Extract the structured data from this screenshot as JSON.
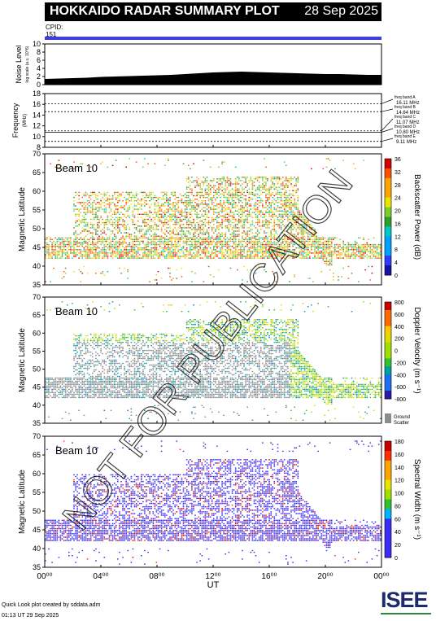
{
  "header": {
    "title": "HOKKAIDO RADAR SUMMARY PLOT",
    "date": "28 Sep 2025"
  },
  "cpid": {
    "label": "CPID:",
    "value": "151"
  },
  "noise_panel": {
    "ylabel": "Noise Level",
    "ylabel_sub": "log scale (a.u. 10^6)",
    "ticks": [
      "0",
      "2",
      "4",
      "6",
      "8",
      "10"
    ]
  },
  "freq_panel": {
    "ylabel": "Frequency",
    "unit": "(MHz)",
    "ticks": [
      "8",
      "10",
      "12",
      "14",
      "16",
      "18"
    ],
    "bands": [
      {
        "name": "freq band A",
        "value": "16.11 MHz"
      },
      {
        "name": "freq band B",
        "value": "14.64 MHz"
      },
      {
        "name": "freq band C",
        "value": "11.07 MHz"
      },
      {
        "name": "freq band D",
        "value": "10.80 MHz"
      },
      {
        "name": "freq band E",
        "value": "9.11 MHz"
      }
    ]
  },
  "panels": [
    {
      "beam": "Beam 10",
      "ylabel": "Magnetic Latitude",
      "cb_label": "Backscatter Power (dB)",
      "cb_ticks": [
        "0",
        "4",
        "8",
        "12",
        "16",
        "20",
        "24",
        "28",
        "32",
        "36"
      ]
    },
    {
      "beam": "Beam 10",
      "ylabel": "Magnetic Latitude",
      "cb_label": "Doppler Velocity (m s⁻¹)",
      "cb_ticks": [
        "-800",
        "-600",
        "-400",
        "-200",
        "0",
        "200",
        "400",
        "600",
        "800"
      ],
      "gs_label": "Ground",
      "gs_label2": "Scatter"
    },
    {
      "beam": "Beam 10",
      "ylabel": "Magnetic Latitude",
      "cb_label": "Spectral Width (m s⁻¹)",
      "cb_ticks": [
        "0",
        "20",
        "40",
        "60",
        "80",
        "100",
        "120",
        "140",
        "160",
        "180"
      ]
    }
  ],
  "lat_ticks": [
    "35",
    "40",
    "45",
    "50",
    "55",
    "60",
    "65",
    "70"
  ],
  "time_ticks": [
    "00⁰⁰",
    "04⁰⁰",
    "08⁰⁰",
    "12⁰⁰",
    "16⁰⁰",
    "20⁰⁰",
    "00⁰⁰"
  ],
  "xlabel": "UT",
  "footer": {
    "line1": "Quick Look plot created by sddata.adm",
    "line2": "01:13 UT 29 Sep 2025"
  },
  "logo": "ISEE",
  "watermark": "NOT FOR PUBLICATION",
  "colors": {
    "accent": "#3a3cf0",
    "ground_scatter": "#8c8c8c"
  },
  "chart_data": [
    {
      "type": "line",
      "title": "Noise Level",
      "xlabel": "UT",
      "ylabel": "Noise Level",
      "ylim": [
        0,
        10
      ],
      "x_range_hours": [
        0,
        24
      ],
      "series": [
        {
          "values_hourly": [
            1.4,
            1.5,
            1.6,
            1.7,
            1.9,
            2.0,
            2.1,
            2.2,
            2.3,
            2.4,
            2.6,
            2.8,
            3.0,
            3.1,
            3.2,
            3.1,
            3.0,
            2.9,
            2.8,
            2.7,
            2.6,
            2.6,
            2.5,
            2.4,
            2.4
          ]
        }
      ]
    },
    {
      "type": "line",
      "title": "Frequency",
      "ylabel": "Frequency (MHz)",
      "ylim": [
        8,
        18
      ],
      "series": [
        {
          "name": "freq band A",
          "value": 16.11
        },
        {
          "name": "freq band B",
          "value": 14.64
        },
        {
          "name": "freq band C",
          "value": 11.07
        },
        {
          "name": "freq band D",
          "value": 10.8
        },
        {
          "name": "freq band E",
          "value": 9.11
        }
      ]
    },
    {
      "type": "heatmap",
      "title": "Backscatter Power",
      "xlabel": "UT",
      "ylabel": "Magnetic Latitude",
      "ylim": [
        35,
        70
      ],
      "crange": [
        0,
        36
      ]
    },
    {
      "type": "heatmap",
      "title": "Doppler Velocity",
      "xlabel": "UT",
      "ylabel": "Magnetic Latitude",
      "ylim": [
        35,
        70
      ],
      "crange": [
        -800,
        800
      ]
    },
    {
      "type": "heatmap",
      "title": "Spectral Width",
      "xlabel": "UT",
      "ylabel": "Magnetic Latitude",
      "ylim": [
        35,
        70
      ],
      "crange": [
        0,
        180
      ]
    }
  ]
}
